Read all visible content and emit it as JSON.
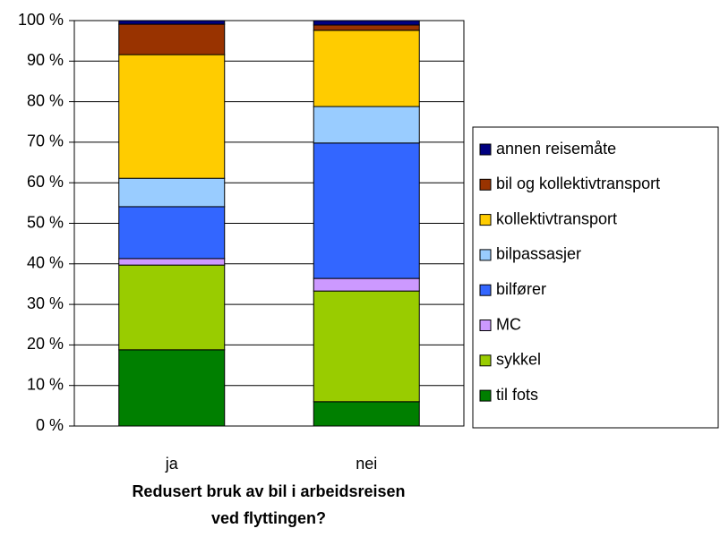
{
  "chart_data": {
    "type": "stacked_bar",
    "x_label": "Redusert bruk av bil i arbeidsreisen ved flyttingen?",
    "categories": [
      "ja",
      "nei"
    ],
    "series": [
      {
        "name": "til fots",
        "color": "#007f00",
        "values": [
          18.8,
          6.0
        ]
      },
      {
        "name": "sykkel",
        "color": "#99cc00",
        "values": [
          20.9,
          27.3
        ]
      },
      {
        "name": "MC",
        "color": "#cc99ff",
        "values": [
          1.6,
          3.1
        ]
      },
      {
        "name": "bilfører",
        "color": "#3366ff",
        "values": [
          12.8,
          33.4
        ]
      },
      {
        "name": "bilpassasjer",
        "color": "#99ccff",
        "values": [
          7.0,
          9.0
        ]
      },
      {
        "name": "kollektivtransport",
        "color": "#ffcc00",
        "values": [
          30.5,
          18.8
        ]
      },
      {
        "name": "bil og kollektivtransport",
        "color": "#993300",
        "values": [
          7.5,
          1.3
        ]
      },
      {
        "name": "annen reisemåte",
        "color": "#000080",
        "values": [
          0.9,
          1.1
        ]
      }
    ],
    "ylim": [
      0,
      100
    ],
    "yticks": [
      {
        "value": 0,
        "label": "0 %"
      },
      {
        "value": 10,
        "label": "10 %"
      },
      {
        "value": 20,
        "label": "20 %"
      },
      {
        "value": 30,
        "label": "30 %"
      },
      {
        "value": 40,
        "label": "40 %"
      },
      {
        "value": 50,
        "label": "50 %"
      },
      {
        "value": 60,
        "label": "60 %"
      },
      {
        "value": 70,
        "label": "70 %"
      },
      {
        "value": 80,
        "label": "80 %"
      },
      {
        "value": 90,
        "label": "90 %"
      },
      {
        "value": 100,
        "label": "100 %"
      }
    ],
    "grid": true,
    "legend": "right"
  }
}
